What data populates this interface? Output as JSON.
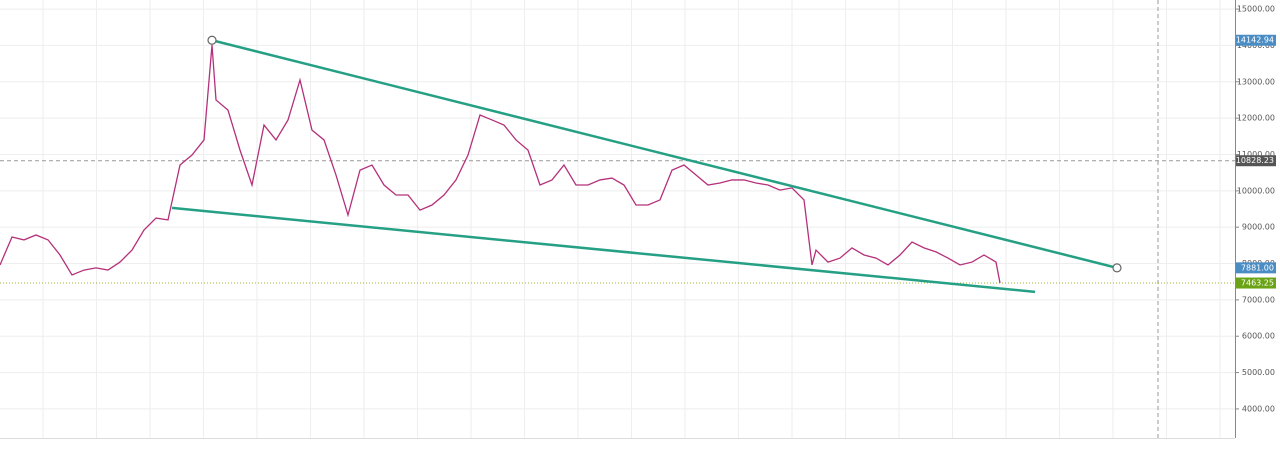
{
  "chart_data": {
    "type": "line",
    "color": "#b5307a",
    "x": [
      0,
      12,
      24,
      36,
      48,
      60,
      72,
      84,
      96,
      108,
      120,
      132,
      144,
      156,
      168,
      180,
      192,
      204,
      212,
      216,
      228,
      240,
      252,
      264,
      276,
      288,
      300,
      312,
      324,
      336,
      348,
      360,
      372,
      384,
      396,
      408,
      420,
      432,
      444,
      456,
      468,
      480,
      492,
      504,
      516,
      528,
      540,
      552,
      564,
      576,
      588,
      600,
      612,
      624,
      636,
      648,
      660,
      672,
      684,
      696,
      708,
      720,
      732,
      744,
      756,
      768,
      780,
      792,
      804,
      812,
      816,
      828,
      840,
      852,
      864,
      876,
      888,
      900,
      912,
      924,
      936,
      948,
      960,
      972,
      984,
      996,
      1000
    ],
    "values": [
      7960,
      8730,
      8650,
      8785,
      8650,
      8235,
      7685,
      7820,
      7880,
      7820,
      8040,
      8370,
      8920,
      9250,
      9200,
      10710,
      10985,
      11400,
      14010,
      12500,
      12220,
      11120,
      10160,
      11810,
      11400,
      11950,
      13050,
      11670,
      11400,
      10435,
      9335,
      10570,
      10710,
      10160,
      9885,
      9885,
      9470,
      9610,
      9885,
      10300,
      10985,
      12085,
      11950,
      11810,
      11400,
      11120,
      10160,
      10300,
      10710,
      10160,
      10160,
      10300,
      10350,
      10160,
      9610,
      9610,
      9750,
      10570,
      10710,
      10435,
      10160,
      10215,
      10300,
      10300,
      10215,
      10160,
      10020,
      10080,
      9750,
      7960,
      8370,
      8040,
      8150,
      8430,
      8235,
      8150,
      7960,
      8235,
      8590,
      8430,
      8320,
      8150,
      7960,
      8040,
      8235,
      8040,
      7463.25
    ],
    "xlim": [
      0,
      1235
    ],
    "ylim": [
      3200,
      15250
    ],
    "yticks": [
      {
        "value": 4000,
        "label": "4000.00"
      },
      {
        "value": 5000,
        "label": "5000.00"
      },
      {
        "value": 6000,
        "label": "6000.00"
      },
      {
        "value": 7000,
        "label": "7000.00"
      },
      {
        "value": 8000,
        "label": "8000.00"
      },
      {
        "value": 9000,
        "label": "9000.00"
      },
      {
        "value": 10000,
        "label": "10000.00"
      },
      {
        "value": 11000,
        "label": "11000.00"
      },
      {
        "value": 12000,
        "label": "12000.00"
      },
      {
        "value": 13000,
        "label": "13000.00"
      },
      {
        "value": 14000,
        "label": "14000.00"
      },
      {
        "value": 15000,
        "label": "15000.00"
      }
    ],
    "grid": true,
    "trendlines": [
      {
        "x": [
          212,
          1117
        ],
        "values": [
          14142.94,
          7881
        ],
        "color": "#26a085"
      },
      {
        "x": [
          172,
          1035
        ],
        "values": [
          9530,
          7220
        ],
        "color": "#26a085"
      }
    ],
    "crosshair": {
      "x": 1158,
      "y": 10828.23
    },
    "price_labels": [
      {
        "value": 14142.94,
        "label": "14142.94",
        "color": "#4a8cc4"
      },
      {
        "value": 10828.23,
        "label": "10828.23",
        "color": "#555555"
      },
      {
        "value": 7881,
        "label": "7881.00",
        "color": "#4a8cc4"
      },
      {
        "value": 7463.25,
        "label": "7463.25",
        "color": "#6aa316"
      }
    ]
  }
}
